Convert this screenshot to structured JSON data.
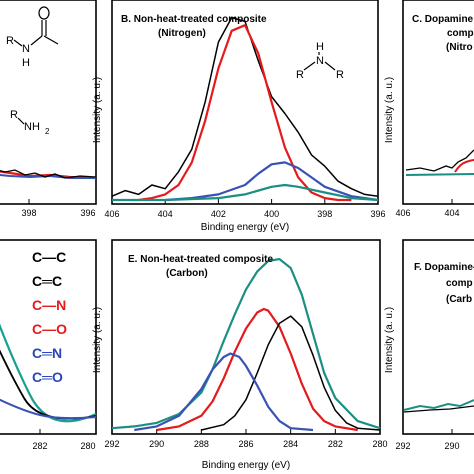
{
  "panels": {
    "A": {
      "tick_labels": [
        "398",
        "396"
      ],
      "chem_labels": {
        "amide_r": "R",
        "amide_n": "N",
        "amide_h": "H",
        "amine": "R",
        "nh2": "NH",
        "sub2": "2"
      }
    },
    "B": {
      "title": "B. Non-heat-treated composite",
      "subtitle": "(Nitrogen)",
      "ylabel": "Intensity (a. u.)",
      "xlabel": "Binding energy (eV)",
      "chem_labels": {
        "h": "H",
        "n": "N",
        "r1": "R",
        "r2": "R"
      }
    },
    "C": {
      "title_line1": "C. Dopamine",
      "title_line2": "comp",
      "title_line3": "(Nitro",
      "ylabel": "Intensity (a. u.)",
      "tick_labels": [
        "406",
        "404"
      ]
    },
    "D": {
      "tick_labels": [
        "282",
        "280"
      ],
      "bond_labels": [
        "C—C",
        "C═C",
        "C—N",
        "C—O",
        "C═N",
        "C═O"
      ]
    },
    "E": {
      "title": "E. Non-heat-treated composite",
      "subtitle": "(Carbon)",
      "ylabel": "Intensity (a. u.)",
      "xlabel": "Binding energy (eV)"
    },
    "F": {
      "title_line1": "F. Dopamine-",
      "title_line2": "comp",
      "title_line3": "(Carb",
      "ylabel": "Intensity (a. u.)",
      "tick_labels": [
        "292",
        "290"
      ]
    }
  },
  "colors": {
    "measured": "#000000",
    "component_red": "#e41a1c",
    "component_blue": "#3a52b3",
    "component_teal": "#1a8f82",
    "envelope_teal": "#1aa092",
    "nitrogen_blue": "#1a7fc1",
    "bond_black": "#000000",
    "bond_red": "#e41a1c",
    "bond_blue": "#2b46b8",
    "bond_teal": "#1a8f82"
  },
  "chart_data": [
    {
      "panel": "B",
      "type": "line",
      "title": "B. Non-heat-treated composite",
      "subtitle": "(Nitrogen)",
      "xlabel": "Binding energy (eV)",
      "ylabel": "Intensity (a. u.)",
      "xlim": [
        406,
        396
      ],
      "x_ticks": [
        "406",
        "404",
        "402",
        "400",
        "398",
        "396"
      ],
      "ylim": [
        0,
        1
      ],
      "grid": false,
      "series": [
        {
          "color": "black",
          "x": [
            406,
            405.5,
            405,
            404.5,
            404,
            403.5,
            403,
            402.5,
            402,
            401.5,
            401,
            400.5,
            400,
            399.5,
            399,
            398.5,
            398,
            397.5,
            397,
            396.5,
            396
          ],
          "y": [
            0.02,
            0.05,
            0.03,
            0.08,
            0.06,
            0.15,
            0.27,
            0.52,
            0.84,
            0.97,
            0.95,
            0.74,
            0.55,
            0.46,
            0.36,
            0.24,
            0.18,
            0.1,
            0.06,
            0.03,
            0.02
          ]
        },
        {
          "color": "red",
          "x": [
            405,
            404.5,
            404,
            403.5,
            403,
            402.5,
            402,
            401.5,
            401,
            400.5,
            400,
            399.5,
            399,
            398.5,
            398,
            397.5,
            397
          ],
          "y": [
            0.0,
            0.01,
            0.03,
            0.08,
            0.2,
            0.42,
            0.7,
            0.9,
            0.93,
            0.78,
            0.52,
            0.28,
            0.12,
            0.04,
            0.01,
            0.0,
            0.0
          ]
        },
        {
          "color": "blue",
          "x": [
            404,
            403,
            402,
            401,
            400.5,
            400,
            399.5,
            399,
            398.5,
            398,
            397,
            396
          ],
          "y": [
            0.0,
            0.01,
            0.03,
            0.08,
            0.14,
            0.19,
            0.2,
            0.17,
            0.12,
            0.07,
            0.02,
            0.0
          ]
        },
        {
          "color": "teal",
          "x": [
            406,
            404,
            402,
            401,
            400,
            399.5,
            399,
            398,
            397,
            396
          ],
          "y": [
            0.0,
            0.0,
            0.01,
            0.03,
            0.07,
            0.08,
            0.07,
            0.04,
            0.01,
            0.0
          ]
        }
      ]
    },
    {
      "panel": "E",
      "type": "line",
      "title": "E. Non-heat-treated composite",
      "subtitle": "(Carbon)",
      "xlabel": "Binding energy (eV)",
      "ylabel": "Intensity (a. u.)",
      "xlim": [
        292,
        280
      ],
      "x_ticks": [
        "292",
        "290",
        "288",
        "286",
        "284",
        "282",
        "280"
      ],
      "ylim": [
        0,
        1
      ],
      "grid": false,
      "series": [
        {
          "color": "teal",
          "x": [
            292,
            291,
            290,
            289,
            288,
            287.5,
            287,
            286.5,
            286,
            285.5,
            285,
            284.5,
            284,
            283.5,
            283,
            282.5,
            282,
            281,
            280
          ],
          "y": [
            0.01,
            0.02,
            0.04,
            0.09,
            0.21,
            0.34,
            0.5,
            0.65,
            0.79,
            0.89,
            0.95,
            0.96,
            0.91,
            0.76,
            0.54,
            0.32,
            0.18,
            0.05,
            0.01
          ]
        },
        {
          "color": "red",
          "x": [
            290,
            289,
            288,
            287.5,
            287,
            286.5,
            286,
            285.5,
            285.2,
            285,
            284.5,
            284,
            283.5,
            283,
            282.5,
            282,
            281
          ],
          "y": [
            0.0,
            0.02,
            0.08,
            0.16,
            0.29,
            0.44,
            0.57,
            0.66,
            0.68,
            0.67,
            0.58,
            0.43,
            0.26,
            0.12,
            0.05,
            0.02,
            0.0
          ]
        },
        {
          "color": "black",
          "x": [
            288,
            287,
            286.5,
            286,
            285.5,
            285,
            284.5,
            284,
            283.5,
            283,
            282.5,
            282,
            281.5,
            281,
            280
          ],
          "y": [
            0.0,
            0.03,
            0.08,
            0.17,
            0.32,
            0.48,
            0.6,
            0.64,
            0.58,
            0.42,
            0.24,
            0.11,
            0.04,
            0.01,
            0.0
          ]
        },
        {
          "color": "blue",
          "x": [
            291,
            290,
            289,
            288,
            287.5,
            287,
            286.7,
            286.3,
            286,
            285.5,
            285,
            284.5,
            284,
            283
          ],
          "y": [
            0.0,
            0.02,
            0.08,
            0.23,
            0.34,
            0.41,
            0.43,
            0.41,
            0.36,
            0.25,
            0.13,
            0.05,
            0.01,
            0.0
          ]
        }
      ]
    }
  ]
}
